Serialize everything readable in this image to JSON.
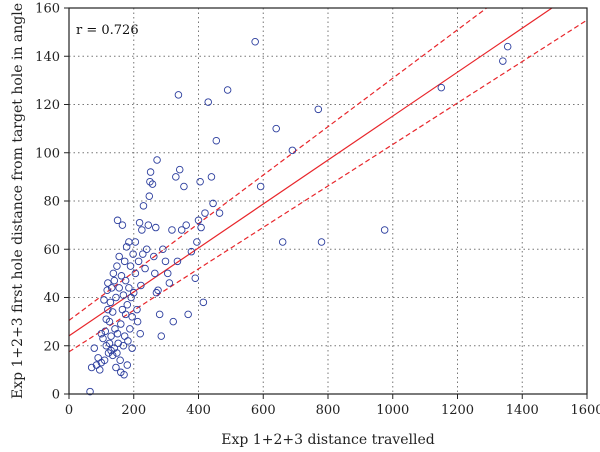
{
  "chart_data": {
    "type": "scatter",
    "title": "",
    "xlabel": "Exp 1+2+3 distance travelled",
    "ylabel": "Exp 1+2+3 first hole distance from target hole in angle",
    "xlim": [
      0,
      1600
    ],
    "ylim": [
      0,
      160
    ],
    "xticks": [
      "0",
      "200",
      "400",
      "600",
      "800",
      "1000",
      "1200",
      "1400",
      "1600"
    ],
    "yticks": [
      "0",
      "20",
      "40",
      "60",
      "80",
      "100",
      "120",
      "140",
      "160"
    ],
    "xtick_values": [
      0,
      200,
      400,
      600,
      800,
      1000,
      1200,
      1400,
      1600
    ],
    "ytick_values": [
      0,
      20,
      40,
      60,
      80,
      100,
      120,
      140,
      160
    ],
    "grid": true,
    "annotation": "r = 0.726",
    "points": [
      [
        65,
        1
      ],
      [
        70,
        11
      ],
      [
        78,
        19
      ],
      [
        85,
        12
      ],
      [
        90,
        15
      ],
      [
        95,
        10
      ],
      [
        100,
        13
      ],
      [
        100,
        25
      ],
      [
        105,
        23
      ],
      [
        108,
        39
      ],
      [
        110,
        14
      ],
      [
        112,
        26
      ],
      [
        115,
        20
      ],
      [
        115,
        31
      ],
      [
        118,
        43
      ],
      [
        120,
        35
      ],
      [
        120,
        46
      ],
      [
        122,
        17
      ],
      [
        125,
        21
      ],
      [
        125,
        30
      ],
      [
        128,
        38
      ],
      [
        130,
        18
      ],
      [
        130,
        24
      ],
      [
        132,
        44
      ],
      [
        135,
        16
      ],
      [
        135,
        34
      ],
      [
        137,
        50
      ],
      [
        140,
        19
      ],
      [
        140,
        47
      ],
      [
        142,
        27
      ],
      [
        145,
        11
      ],
      [
        145,
        40
      ],
      [
        148,
        17
      ],
      [
        148,
        53
      ],
      [
        150,
        25
      ],
      [
        150,
        72
      ],
      [
        152,
        21
      ],
      [
        155,
        44
      ],
      [
        155,
        57
      ],
      [
        158,
        14
      ],
      [
        160,
        9
      ],
      [
        160,
        29
      ],
      [
        162,
        49
      ],
      [
        165,
        35
      ],
      [
        165,
        70
      ],
      [
        168,
        20
      ],
      [
        168,
        41
      ],
      [
        170,
        8
      ],
      [
        172,
        24
      ],
      [
        172,
        55
      ],
      [
        175,
        33
      ],
      [
        175,
        47
      ],
      [
        178,
        61
      ],
      [
        180,
        12
      ],
      [
        180,
        37
      ],
      [
        182,
        22
      ],
      [
        185,
        44
      ],
      [
        185,
        63
      ],
      [
        188,
        27
      ],
      [
        190,
        53
      ],
      [
        192,
        40
      ],
      [
        195,
        19
      ],
      [
        195,
        32
      ],
      [
        198,
        58
      ],
      [
        200,
        42
      ],
      [
        205,
        50
      ],
      [
        205,
        63
      ],
      [
        210,
        35
      ],
      [
        212,
        30
      ],
      [
        215,
        55
      ],
      [
        218,
        71
      ],
      [
        220,
        25
      ],
      [
        222,
        45
      ],
      [
        225,
        68
      ],
      [
        228,
        58
      ],
      [
        230,
        78
      ],
      [
        235,
        52
      ],
      [
        240,
        60
      ],
      [
        245,
        70
      ],
      [
        248,
        82
      ],
      [
        250,
        88
      ],
      [
        252,
        92
      ],
      [
        258,
        87
      ],
      [
        262,
        57
      ],
      [
        265,
        50
      ],
      [
        268,
        69
      ],
      [
        270,
        42
      ],
      [
        272,
        97
      ],
      [
        275,
        43
      ],
      [
        280,
        33
      ],
      [
        285,
        24
      ],
      [
        290,
        60
      ],
      [
        298,
        55
      ],
      [
        305,
        50
      ],
      [
        310,
        46
      ],
      [
        318,
        68
      ],
      [
        322,
        30
      ],
      [
        330,
        90
      ],
      [
        335,
        55
      ],
      [
        338,
        124
      ],
      [
        342,
        93
      ],
      [
        348,
        68
      ],
      [
        355,
        86
      ],
      [
        362,
        70
      ],
      [
        368,
        33
      ],
      [
        378,
        59
      ],
      [
        390,
        48
      ],
      [
        395,
        63
      ],
      [
        400,
        72
      ],
      [
        405,
        88
      ],
      [
        408,
        69
      ],
      [
        415,
        38
      ],
      [
        420,
        75
      ],
      [
        430,
        121
      ],
      [
        440,
        90
      ],
      [
        445,
        79
      ],
      [
        455,
        105
      ],
      [
        465,
        75
      ],
      [
        490,
        126
      ],
      [
        575,
        146
      ],
      [
        592,
        86
      ],
      [
        640,
        110
      ],
      [
        660,
        63
      ],
      [
        690,
        101
      ],
      [
        770,
        118
      ],
      [
        780,
        63
      ],
      [
        975,
        68
      ],
      [
        1150,
        127
      ],
      [
        1340,
        138
      ],
      [
        1355,
        144
      ]
    ],
    "regression": {
      "slope": 0.0911,
      "intercept": 24.1
    },
    "confidence_band": {
      "upper": [
        [
          0,
          30.5
        ],
        [
          1300,
          161
        ]
      ],
      "lower": [
        [
          0,
          17.5
        ],
        [
          1600,
          155
        ]
      ]
    },
    "colors": {
      "points": "#2c3e9e",
      "fit": "#e8262b",
      "grid": "#777777"
    }
  }
}
